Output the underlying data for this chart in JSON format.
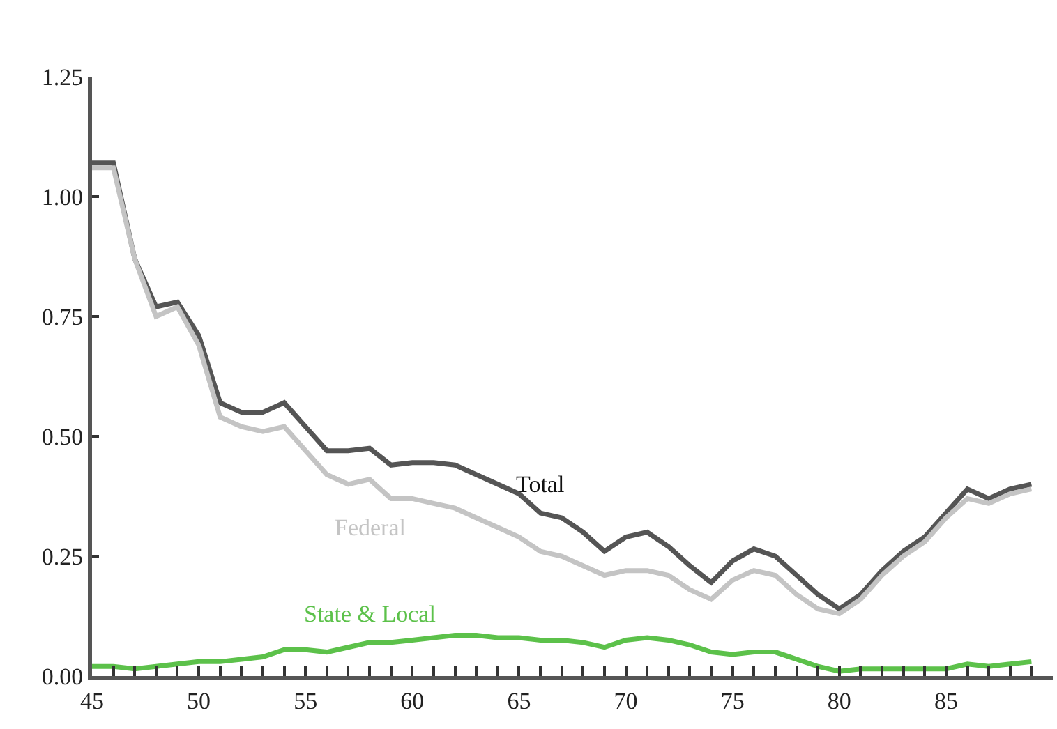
{
  "chart_data": {
    "type": "line",
    "x": [
      45,
      46,
      47,
      48,
      49,
      50,
      51,
      52,
      53,
      54,
      55,
      56,
      57,
      58,
      59,
      60,
      61,
      62,
      63,
      64,
      65,
      66,
      67,
      68,
      69,
      70,
      71,
      72,
      73,
      74,
      75,
      76,
      77,
      78,
      79,
      80,
      81,
      82,
      83,
      84,
      85,
      86,
      87,
      88,
      89
    ],
    "series": [
      {
        "name": "Total",
        "color": "#555555",
        "values": [
          1.07,
          1.07,
          0.87,
          0.77,
          0.78,
          0.71,
          0.57,
          0.55,
          0.55,
          0.57,
          0.52,
          0.47,
          0.47,
          0.475,
          0.44,
          0.445,
          0.445,
          0.44,
          0.42,
          0.4,
          0.38,
          0.34,
          0.33,
          0.3,
          0.26,
          0.29,
          0.3,
          0.27,
          0.23,
          0.195,
          0.24,
          0.265,
          0.25,
          0.21,
          0.17,
          0.14,
          0.17,
          0.22,
          0.26,
          0.29,
          0.34,
          0.39,
          0.37,
          0.39,
          0.4
        ]
      },
      {
        "name": "Federal",
        "color": "#c4c4c4",
        "values": [
          1.06,
          1.06,
          0.87,
          0.75,
          0.77,
          0.69,
          0.54,
          0.52,
          0.51,
          0.52,
          0.47,
          0.42,
          0.4,
          0.41,
          0.37,
          0.37,
          0.36,
          0.35,
          0.33,
          0.31,
          0.29,
          0.26,
          0.25,
          0.23,
          0.21,
          0.22,
          0.22,
          0.21,
          0.18,
          0.16,
          0.2,
          0.22,
          0.21,
          0.17,
          0.14,
          0.13,
          0.16,
          0.21,
          0.25,
          0.28,
          0.33,
          0.37,
          0.36,
          0.38,
          0.39
        ]
      },
      {
        "name": "State & Local",
        "color": "#5cc14a",
        "values": [
          0.02,
          0.02,
          0.015,
          0.02,
          0.025,
          0.03,
          0.03,
          0.035,
          0.04,
          0.055,
          0.055,
          0.05,
          0.06,
          0.07,
          0.07,
          0.075,
          0.08,
          0.085,
          0.085,
          0.08,
          0.08,
          0.075,
          0.075,
          0.07,
          0.06,
          0.075,
          0.08,
          0.075,
          0.065,
          0.05,
          0.045,
          0.05,
          0.05,
          0.035,
          0.02,
          0.01,
          0.015,
          0.015,
          0.015,
          0.015,
          0.015,
          0.025,
          0.02,
          0.025,
          0.03
        ]
      }
    ],
    "xlim": [
      45,
      90
    ],
    "xticks": [
      45,
      {
        "value": 46,
        "label": null
      },
      {
        "value": 47,
        "label": null
      },
      {
        "value": 48,
        "label": null
      },
      {
        "value": 49,
        "label": null
      },
      50,
      {
        "value": 51,
        "label": null
      },
      {
        "value": 52,
        "label": null
      },
      {
        "value": 53,
        "label": null
      },
      {
        "value": 54,
        "label": null
      },
      55,
      {
        "value": 56,
        "label": null
      },
      {
        "value": 57,
        "label": null
      },
      {
        "value": 58,
        "label": null
      },
      {
        "value": 59,
        "label": null
      },
      60,
      {
        "value": 61,
        "label": null
      },
      {
        "value": 62,
        "label": null
      },
      {
        "value": 63,
        "label": null
      },
      {
        "value": 64,
        "label": null
      },
      65,
      {
        "value": 66,
        "label": null
      },
      {
        "value": 67,
        "label": null
      },
      {
        "value": 68,
        "label": null
      },
      {
        "value": 69,
        "label": null
      },
      70,
      {
        "value": 71,
        "label": null
      },
      {
        "value": 72,
        "label": null
      },
      {
        "value": 73,
        "label": null
      },
      {
        "value": 74,
        "label": null
      },
      75,
      {
        "value": 76,
        "label": null
      },
      {
        "value": 77,
        "label": null
      },
      {
        "value": 78,
        "label": null
      },
      {
        "value": 79,
        "label": null
      },
      80,
      {
        "value": 81,
        "label": null
      },
      {
        "value": 82,
        "label": null
      },
      {
        "value": 83,
        "label": null
      },
      {
        "value": 84,
        "label": null
      },
      85,
      {
        "value": 86,
        "label": null
      },
      {
        "value": 87,
        "label": null
      },
      {
        "value": 88,
        "label": null
      },
      {
        "value": 89,
        "label": null
      }
    ],
    "ylim": [
      0,
      1.25
    ],
    "yticks": [
      {
        "value": 0,
        "label": "0.00"
      },
      {
        "value": 0.25,
        "label": "0.25"
      },
      {
        "value": 0.5,
        "label": "0.50"
      },
      {
        "value": 0.75,
        "label": "0.75"
      },
      {
        "value": 1,
        "label": "1.00"
      },
      {
        "value": 1.25,
        "label": "1.25"
      }
    ],
    "grid": false,
    "legend": false,
    "marker": "none",
    "line_style": "solid"
  }
}
